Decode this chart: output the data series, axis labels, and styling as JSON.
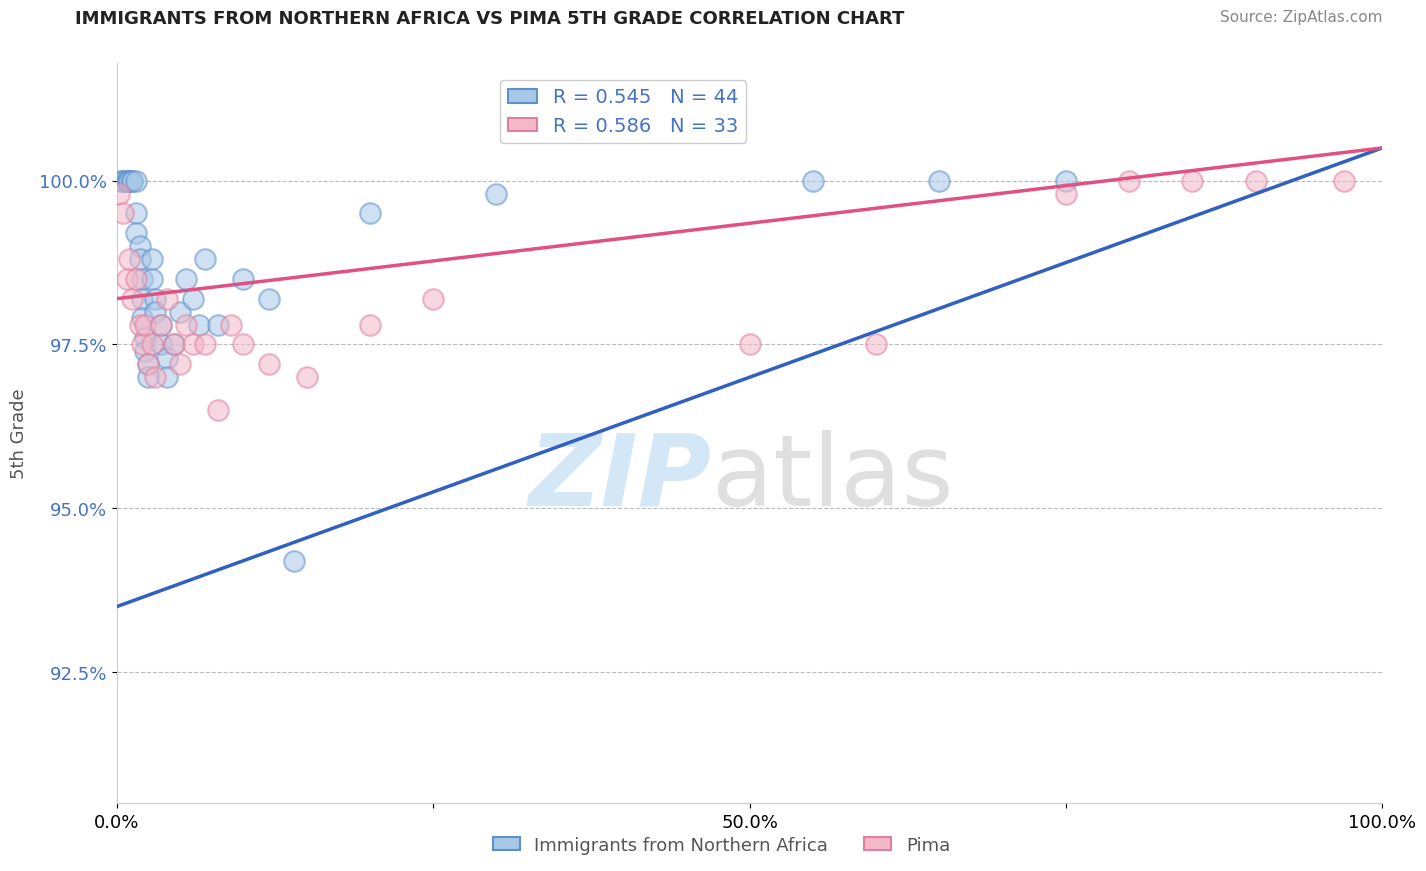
{
  "title": "IMMIGRANTS FROM NORTHERN AFRICA VS PIMA 5TH GRADE CORRELATION CHART",
  "source": "Source: ZipAtlas.com",
  "xlabel": "",
  "ylabel": "5th Grade",
  "xlim": [
    0.0,
    100.0
  ],
  "ylim": [
    90.5,
    101.8
  ],
  "yticks": [
    92.5,
    95.0,
    97.5,
    100.0
  ],
  "ytick_labels": [
    "92.5%",
    "95.0%",
    "97.5%",
    "100.0%"
  ],
  "xticks": [
    0.0,
    25.0,
    50.0,
    75.0,
    100.0
  ],
  "xtick_labels": [
    "0.0%",
    "",
    "50.0%",
    "",
    "100.0%"
  ],
  "blue_R": 0.545,
  "blue_N": 44,
  "pink_R": 0.586,
  "pink_N": 33,
  "blue_color": "#a8c8e8",
  "pink_color": "#f4b8c8",
  "blue_line_color": "#3060c0",
  "pink_line_color": "#e05080",
  "legend_blue_label": "Immigrants from Northern Africa",
  "legend_pink_label": "Pima",
  "blue_points_x": [
    0.3,
    0.5,
    0.5,
    0.8,
    0.8,
    1.0,
    1.0,
    1.2,
    1.2,
    1.5,
    1.5,
    1.5,
    1.8,
    1.8,
    2.0,
    2.0,
    2.0,
    2.2,
    2.2,
    2.5,
    2.5,
    2.8,
    2.8,
    3.0,
    3.0,
    3.5,
    3.5,
    4.0,
    4.0,
    4.5,
    5.0,
    5.5,
    6.0,
    6.5,
    7.0,
    8.0,
    10.0,
    12.0,
    14.0,
    20.0,
    30.0,
    55.0,
    65.0,
    75.0
  ],
  "blue_points_y": [
    100.0,
    100.0,
    100.0,
    100.0,
    100.0,
    100.0,
    100.0,
    100.0,
    100.0,
    100.0,
    99.5,
    99.2,
    99.0,
    98.8,
    98.5,
    98.2,
    97.9,
    97.6,
    97.4,
    97.2,
    97.0,
    98.8,
    98.5,
    98.2,
    98.0,
    97.8,
    97.5,
    97.3,
    97.0,
    97.5,
    98.0,
    98.5,
    98.2,
    97.8,
    98.8,
    97.8,
    98.5,
    98.2,
    94.2,
    99.5,
    99.8,
    100.0,
    100.0,
    100.0
  ],
  "pink_points_x": [
    0.2,
    0.5,
    0.8,
    1.0,
    1.2,
    1.5,
    1.8,
    2.0,
    2.2,
    2.5,
    2.8,
    3.0,
    3.5,
    4.0,
    4.5,
    5.0,
    5.5,
    6.0,
    7.0,
    8.0,
    9.0,
    10.0,
    12.0,
    15.0,
    20.0,
    25.0,
    50.0,
    60.0,
    75.0,
    80.0,
    85.0,
    90.0,
    97.0
  ],
  "pink_points_y": [
    99.8,
    99.5,
    98.5,
    98.8,
    98.2,
    98.5,
    97.8,
    97.5,
    97.8,
    97.2,
    97.5,
    97.0,
    97.8,
    98.2,
    97.5,
    97.2,
    97.8,
    97.5,
    97.5,
    96.5,
    97.8,
    97.5,
    97.2,
    97.0,
    97.8,
    98.2,
    97.5,
    97.5,
    99.8,
    100.0,
    100.0,
    100.0,
    100.0
  ]
}
